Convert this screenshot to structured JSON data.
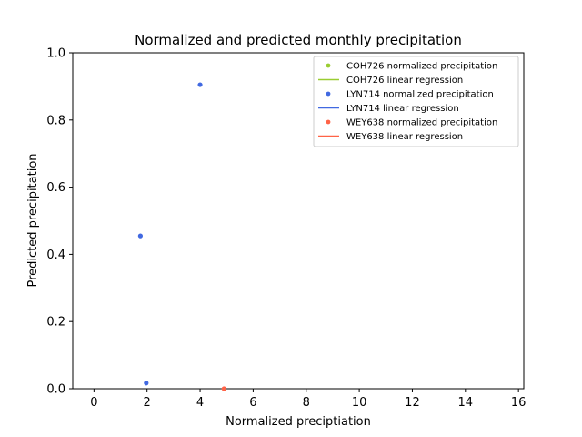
{
  "chart_data": {
    "type": "scatter",
    "title": "Normalized and predicted monthly precipitation",
    "xlabel": "Normalized preciptiation",
    "ylabel": "Predicted precipitation",
    "xlim": [
      -0.8,
      16.2
    ],
    "ylim": [
      0,
      1.0
    ],
    "xticks": [
      0,
      2,
      4,
      6,
      8,
      10,
      12,
      14,
      16
    ],
    "yticks": [
      0.0,
      0.2,
      0.4,
      0.6,
      0.8,
      1.0
    ],
    "xtick_labels": [
      "0",
      "2",
      "4",
      "6",
      "8",
      "10",
      "12",
      "14",
      "16"
    ],
    "ytick_labels": [
      "0.0",
      "0.2",
      "0.4",
      "0.6",
      "0.8",
      "1.0"
    ],
    "grid": false,
    "legend_position": "top-right",
    "series": [
      {
        "name": "COH726 normalized precipitation",
        "kind": "points",
        "color": "#9acd32",
        "x": [],
        "y": []
      },
      {
        "name": "COH726 linear regression",
        "kind": "line",
        "color": "#9acd32",
        "x": [],
        "y": []
      },
      {
        "name": "LYN714 normalized precipitation",
        "kind": "points",
        "color": "#4169e1",
        "x": [
          1.75,
          4.0,
          1.97
        ],
        "y": [
          0.455,
          0.905,
          0.017
        ]
      },
      {
        "name": "LYN714 linear regression",
        "kind": "line",
        "color": "#4169e1",
        "x": [],
        "y": []
      },
      {
        "name": "WEY638 normalized precipitation",
        "kind": "points",
        "color": "#ff6347",
        "x": [
          4.9
        ],
        "y": [
          0.0
        ]
      },
      {
        "name": "WEY638 linear regression",
        "kind": "line",
        "color": "#ff6347",
        "x": [],
        "y": []
      }
    ]
  }
}
